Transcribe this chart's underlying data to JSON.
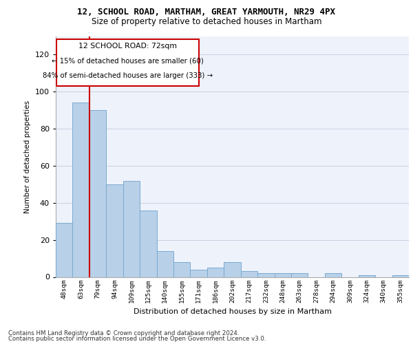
{
  "title_line1": "12, SCHOOL ROAD, MARTHAM, GREAT YARMOUTH, NR29 4PX",
  "title_line2": "Size of property relative to detached houses in Martham",
  "xlabel": "Distribution of detached houses by size in Martham",
  "ylabel": "Number of detached properties",
  "categories": [
    "48sqm",
    "63sqm",
    "79sqm",
    "94sqm",
    "109sqm",
    "125sqm",
    "140sqm",
    "155sqm",
    "171sqm",
    "186sqm",
    "202sqm",
    "217sqm",
    "232sqm",
    "248sqm",
    "263sqm",
    "278sqm",
    "294sqm",
    "309sqm",
    "324sqm",
    "340sqm",
    "355sqm"
  ],
  "values": [
    29,
    94,
    90,
    50,
    52,
    36,
    14,
    8,
    4,
    5,
    8,
    3,
    2,
    2,
    2,
    0,
    2,
    0,
    1,
    0,
    1
  ],
  "bar_color": "#b8d0e8",
  "bar_edge_color": "#7aaad0",
  "ylim": [
    0,
    130
  ],
  "yticks": [
    0,
    20,
    40,
    60,
    80,
    100,
    120
  ],
  "vline_x_index": 1.5,
  "vline_color": "#cc0000",
  "annotation_title": "12 SCHOOL ROAD: 72sqm",
  "annotation_line2": "← 15% of detached houses are smaller (60)",
  "annotation_line3": "84% of semi-detached houses are larger (333) →",
  "background_color": "#eef2fb",
  "footer_line1": "Contains HM Land Registry data © Crown copyright and database right 2024.",
  "footer_line2": "Contains public sector information licensed under the Open Government Licence v3.0."
}
